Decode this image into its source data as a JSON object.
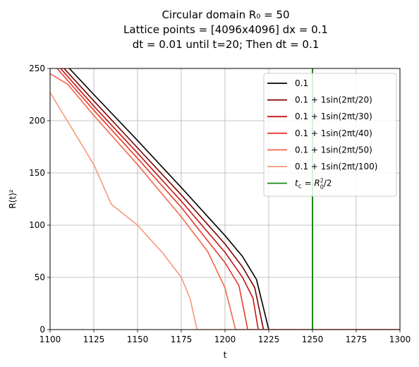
{
  "chart_data": {
    "type": "line",
    "title_lines": [
      "Circular domain R₀ = 50",
      "Lattice points = [4096x4096] dx = 0.1",
      "dt = 0.01 until t=20; Then dt = 0.1"
    ],
    "xlabel": "t",
    "ylabel": "R(t)²",
    "xlim": [
      1100,
      1300
    ],
    "ylim": [
      0,
      250
    ],
    "xticks": [
      1100,
      1125,
      1150,
      1175,
      1200,
      1225,
      1250,
      1275,
      1300
    ],
    "yticks": [
      0,
      50,
      100,
      150,
      200,
      250
    ],
    "grid": true,
    "legend_position": "top-right",
    "series": [
      {
        "name": "0.1",
        "color": "#000000",
        "x": [
          1100,
          1111,
          1125,
          1150,
          1175,
          1200,
          1210,
          1218,
          1225,
          1300
        ],
        "y": [
          265,
          250,
          225,
          181,
          136,
          90,
          70,
          48,
          0,
          0
        ]
      },
      {
        "name": "0.1 + 1sin(2πt/20)",
        "color": "#7f0000",
        "x": [
          1100,
          1108,
          1125,
          1150,
          1175,
          1200,
          1210,
          1217,
          1222,
          1300
        ],
        "y": [
          265,
          250,
          219,
          174,
          129,
          82,
          60,
          40,
          0,
          0
        ]
      },
      {
        "name": "0.1 + 1sin(2πt/30)",
        "color": "#c41414",
        "x": [
          1100,
          1106,
          1125,
          1150,
          1175,
          1200,
          1210,
          1216,
          1219,
          1300
        ],
        "y": [
          263,
          250,
          214,
          169,
          123,
          74,
          50,
          30,
          0,
          0
        ]
      },
      {
        "name": "0.1 + 1sin(2πt/40)",
        "color": "#e8392e",
        "x": [
          1100,
          1104,
          1125,
          1150,
          1175,
          1200,
          1208,
          1213,
          1300
        ],
        "y": [
          260,
          250,
          210,
          164,
          117,
          64,
          42,
          0,
          0
        ]
      },
      {
        "name": "0.1 + 1sin(2πt/50)",
        "color": "#f3674d",
        "x": [
          1100,
          1110,
          1125,
          1150,
          1175,
          1190,
          1200,
          1206,
          1300
        ],
        "y": [
          245,
          235,
          205,
          158,
          108,
          75,
          40,
          0,
          0
        ]
      },
      {
        "name": "0.1 + 1sin(2πt/100)",
        "color": "#f6997a",
        "x": [
          1100,
          1125,
          1135,
          1150,
          1165,
          1175,
          1180,
          1184,
          1300
        ],
        "y": [
          227,
          158,
          120,
          100,
          72,
          50,
          30,
          0,
          0
        ]
      }
    ],
    "vline": {
      "name": "t_c = R₀²/2",
      "color": "#138a13",
      "x": 1250
    }
  }
}
